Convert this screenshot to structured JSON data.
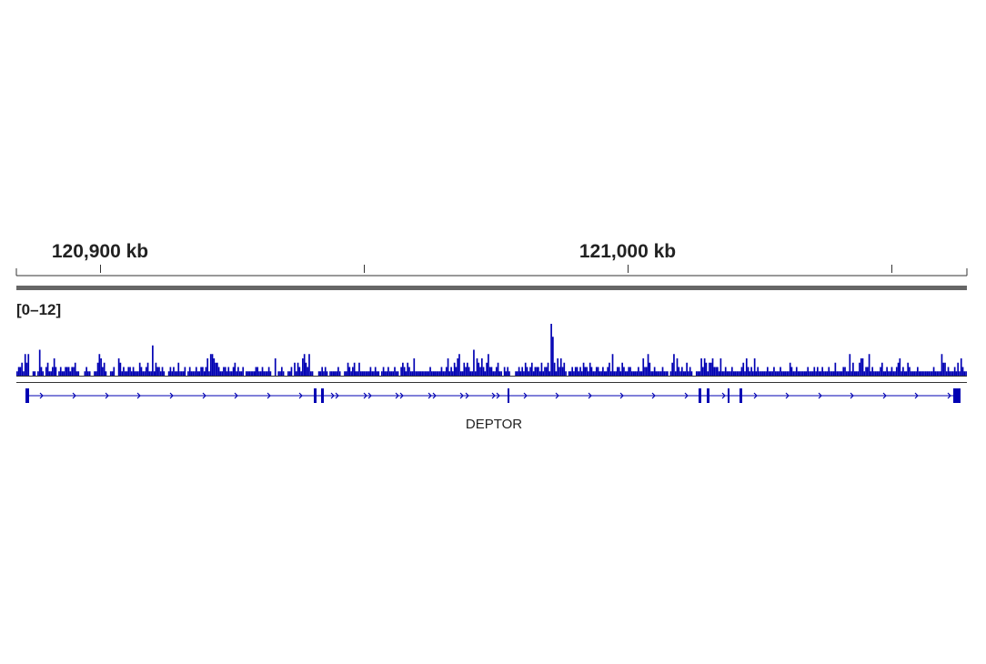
{
  "ruler": {
    "labels": [
      "120,900 kb",
      "121,000 kb"
    ]
  },
  "track": {
    "data_range": "[0–12]",
    "color": "#0000b3"
  },
  "gene": {
    "name": "DEPTOR",
    "color": "#0000b3",
    "strand": "+"
  },
  "chart_data": {
    "type": "bar",
    "title": "",
    "xlabel": "",
    "ylabel": "",
    "ylim": [
      0,
      12
    ],
    "x_ticks_kb": [
      120900,
      121000
    ],
    "series": [
      {
        "values": [
          1,
          2,
          2,
          3,
          1,
          5,
          3,
          5,
          0,
          0,
          1,
          1,
          0,
          1,
          6,
          2,
          1,
          0,
          2,
          3,
          1,
          1,
          2,
          4,
          2,
          0,
          1,
          2,
          1,
          1,
          2,
          2,
          2,
          1,
          2,
          2,
          3,
          1,
          1,
          0,
          0,
          0,
          1,
          2,
          1,
          1,
          0,
          0,
          1,
          1,
          3,
          5,
          4,
          2,
          3,
          1,
          0,
          0,
          1,
          1,
          2,
          0,
          0,
          4,
          3,
          1,
          2,
          1,
          1,
          2,
          2,
          1,
          2,
          1,
          1,
          1,
          3,
          2,
          1,
          1,
          2,
          3,
          1,
          1,
          7,
          1,
          3,
          2,
          2,
          1,
          2,
          1,
          0,
          0,
          1,
          2,
          1,
          2,
          1,
          1,
          3,
          1,
          1,
          1,
          2,
          0,
          1,
          2,
          1,
          1,
          1,
          2,
          1,
          1,
          2,
          2,
          1,
          2,
          4,
          1,
          5,
          5,
          4,
          3,
          3,
          2,
          1,
          1,
          2,
          2,
          1,
          2,
          1,
          1,
          2,
          3,
          1,
          2,
          1,
          1,
          2,
          0,
          1,
          1,
          1,
          1,
          1,
          1,
          2,
          2,
          1,
          1,
          2,
          1,
          1,
          1,
          2,
          1,
          0,
          0,
          4,
          0,
          1,
          1,
          2,
          1,
          0,
          0,
          1,
          1,
          2,
          0,
          3,
          1,
          3,
          2,
          1,
          4,
          5,
          3,
          2,
          5,
          1,
          1,
          0,
          0,
          0,
          1,
          1,
          2,
          1,
          2,
          1,
          0,
          1,
          1,
          1,
          1,
          1,
          2,
          1,
          0,
          0,
          1,
          1,
          3,
          2,
          1,
          2,
          3,
          1,
          1,
          3,
          1,
          1,
          1,
          1,
          1,
          1,
          2,
          1,
          1,
          2,
          1,
          1,
          0,
          1,
          2,
          1,
          1,
          2,
          1,
          1,
          1,
          2,
          1,
          1,
          0,
          2,
          3,
          2,
          1,
          3,
          2,
          1,
          1,
          4,
          1,
          1,
          1,
          1,
          1,
          1,
          1,
          1,
          1,
          2,
          1,
          1,
          1,
          1,
          1,
          1,
          2,
          1,
          1,
          2,
          4,
          1,
          2,
          1,
          3,
          2,
          4,
          5,
          1,
          1,
          3,
          2,
          3,
          2,
          1,
          1,
          6,
          1,
          4,
          3,
          2,
          4,
          2,
          1,
          3,
          5,
          2,
          2,
          1,
          1,
          2,
          3,
          1,
          1,
          0,
          2,
          1,
          2,
          1,
          0,
          0,
          0,
          1,
          1,
          2,
          1,
          2,
          1,
          3,
          2,
          1,
          2,
          3,
          1,
          2,
          2,
          2,
          1,
          3,
          1,
          2,
          2,
          3,
          1,
          12,
          9,
          3,
          1,
          4,
          2,
          4,
          2,
          3,
          1,
          0,
          1,
          1,
          2,
          1,
          2,
          2,
          1,
          2,
          1,
          3,
          2,
          2,
          1,
          3,
          2,
          1,
          1,
          2,
          2,
          1,
          1,
          2,
          1,
          1,
          2,
          3,
          1,
          5,
          1,
          1,
          2,
          2,
          1,
          3,
          2,
          1,
          1,
          2,
          2,
          1,
          1,
          1,
          1,
          2,
          1,
          1,
          4,
          2,
          2,
          5,
          3,
          1,
          1,
          2,
          1,
          1,
          1,
          1,
          2,
          1,
          1,
          1,
          0,
          1,
          3,
          5,
          1,
          4,
          2,
          1,
          2,
          1,
          1,
          3,
          1,
          2,
          1,
          0,
          0,
          1,
          1,
          1,
          4,
          2,
          4,
          3,
          1,
          3,
          3,
          4,
          2,
          2,
          2,
          1,
          4,
          1,
          1,
          2,
          1,
          1,
          1,
          2,
          1,
          1,
          1,
          1,
          1,
          2,
          3,
          1,
          4,
          2,
          1,
          2,
          1,
          4,
          1,
          2,
          1,
          1,
          1,
          1,
          1,
          2,
          1,
          1,
          1,
          2,
          1,
          1,
          1,
          2,
          1,
          1,
          1,
          1,
          1,
          3,
          2,
          1,
          1,
          2,
          1,
          1,
          1,
          1,
          1,
          1,
          2,
          1,
          1,
          1,
          2,
          1,
          2,
          1,
          1,
          2,
          1,
          1,
          1,
          2,
          1,
          1,
          1,
          3,
          1,
          1,
          1,
          1,
          2,
          2,
          1,
          1,
          5,
          1,
          3,
          1,
          1,
          1,
          3,
          4,
          4,
          1,
          2,
          2,
          5,
          1,
          2,
          1,
          1,
          1,
          1,
          2,
          3,
          1,
          1,
          2,
          1,
          1,
          2,
          1,
          1,
          2,
          3,
          4,
          1,
          2,
          1,
          1,
          3,
          2,
          1,
          1,
          1,
          1,
          2,
          1,
          1,
          1,
          1,
          1,
          1,
          1,
          1,
          1,
          2,
          1,
          1,
          1,
          1,
          5,
          3,
          3,
          1,
          2,
          1,
          1,
          1,
          2,
          1,
          3,
          1,
          4,
          2,
          1,
          1
        ]
      }
    ]
  }
}
